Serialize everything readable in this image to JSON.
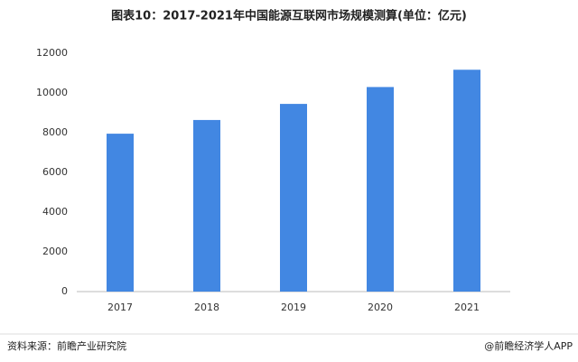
{
  "chart_data": {
    "type": "bar",
    "title": "图表10：2017-2021年中国能源互联网市场规模测算(单位：亿元)",
    "categories": [
      "2017",
      "2018",
      "2019",
      "2020",
      "2021"
    ],
    "values": [
      7950,
      8640,
      9450,
      10300,
      11170
    ],
    "color": "#4287e2",
    "ylim": [
      0,
      12000
    ],
    "yticks": [
      0,
      2000,
      4000,
      6000,
      8000,
      10000,
      12000
    ],
    "grid": false,
    "source": "资料来源：前瞻产业研究院",
    "credit": "@前瞻经济学人APP"
  }
}
